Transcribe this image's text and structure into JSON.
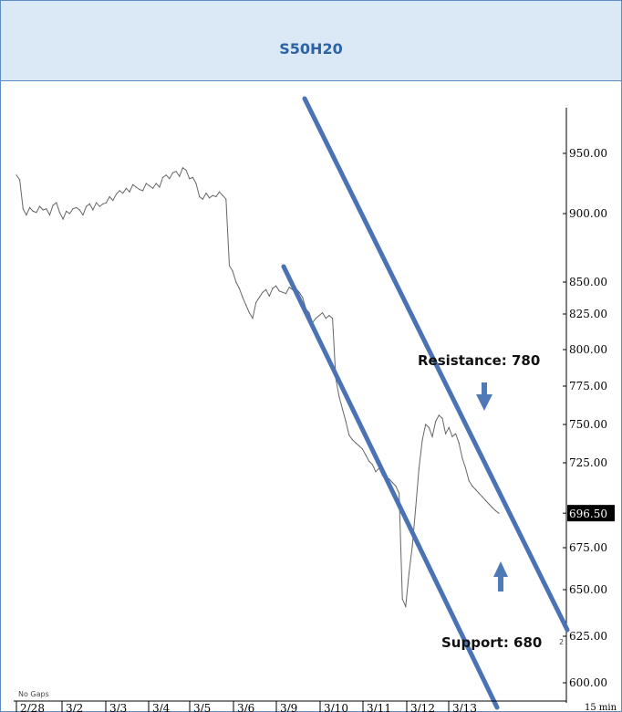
{
  "colors": {
    "header_bg": "#dbe9f7",
    "border": "#5b8cc2",
    "title": "#2e63a3",
    "channel": "#4a72b5",
    "arrow": "#5079b8",
    "price_line": "#666666",
    "last_price_bg": "#000000",
    "last_price_fg": "#ffffff"
  },
  "header": {
    "title": "S50H20"
  },
  "chart_data": {
    "type": "line",
    "title": "S50H20",
    "interval_label": "15 min",
    "footnote": "No Gaps",
    "y_ticks": [
      950,
      900,
      850,
      825,
      800,
      775,
      750,
      725,
      675,
      650,
      625,
      600
    ],
    "y_tick_labels": [
      "950.00",
      "900.00",
      "850.00",
      "825.00",
      "800.00",
      "775.00",
      "750.00",
      "725.00",
      "675.00",
      "650.00",
      "625.00",
      "600.00"
    ],
    "x_tick_labels": [
      "2/28",
      "3/2",
      "3/3",
      "3/4",
      "3/5",
      "3/6",
      "3/9",
      "3/10",
      "3/11",
      "3/12",
      "3/13"
    ],
    "last_price": 696.5,
    "last_price_label": "696.50",
    "axis_marker": "2",
    "grid": false,
    "series": [
      {
        "values": [
          932,
          928,
          904,
          899,
          905,
          902,
          901,
          906,
          903,
          904,
          899,
          907,
          909,
          901,
          896,
          902,
          900,
          904,
          905,
          903,
          899,
          906,
          908,
          903,
          909,
          906,
          908,
          909,
          914,
          911,
          916,
          919,
          917,
          921,
          918,
          924,
          922,
          920,
          919,
          925,
          923,
          921,
          925,
          922,
          930,
          932,
          929,
          934,
          935,
          931,
          938,
          936,
          929,
          930,
          925,
          914,
          912,
          917,
          913,
          915,
          914,
          918,
          915,
          912,
          862,
          858,
          850,
          845,
          838,
          832,
          826,
          822,
          834,
          838,
          842,
          844,
          839,
          845,
          847,
          843,
          842,
          841,
          846,
          844,
          845,
          842,
          838,
          829,
          826,
          819,
          822,
          824,
          826,
          822,
          824,
          822,
          780,
          768,
          760,
          752,
          743,
          740,
          738,
          736,
          734,
          730,
          726,
          724,
          720,
          722,
          718,
          716,
          716,
          714,
          712,
          708,
          645,
          641,
          660,
          676,
          700,
          722,
          740,
          750,
          748,
          742,
          752,
          756,
          754,
          744,
          748,
          742,
          744,
          738,
          728,
          722,
          715,
          712,
          710,
          708,
          706,
          704,
          702,
          700,
          698,
          696.5
        ]
      }
    ],
    "channel_lines": [
      "upper",
      "lower"
    ],
    "annotations": [
      {
        "text": "Resistance: 780",
        "type": "resistance",
        "value": 780
      },
      {
        "text": "Support: 680",
        "type": "support",
        "value": 680
      }
    ]
  }
}
